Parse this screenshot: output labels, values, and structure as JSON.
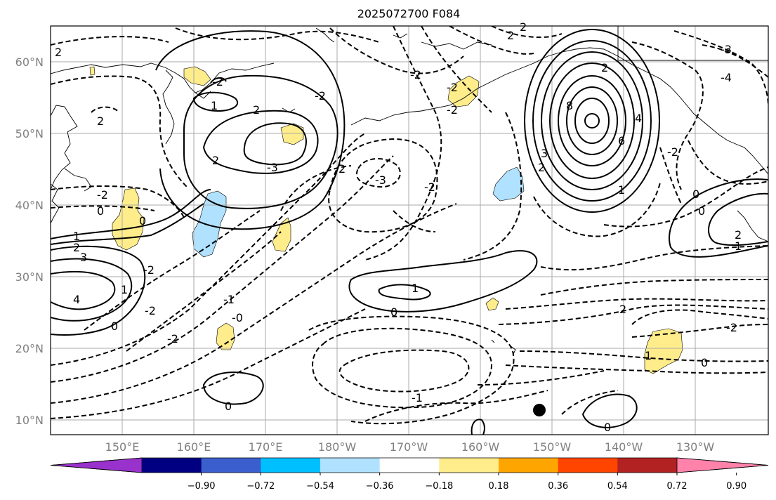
{
  "title": "2025072700 F084",
  "lat_labels": [
    "60°N",
    "50°N",
    "40°N",
    "30°N",
    "20°N",
    "10°N"
  ],
  "lon_labels": [
    "150°E",
    "160°E",
    "170°E",
    "180°W",
    "170°W",
    "160°W",
    "150°W",
    "140°W",
    "130°W"
  ],
  "colorbar": {
    "colors": [
      "#9932cc",
      "#000080",
      "#3a5fcd",
      "#00bfff",
      "#b0e2ff",
      "#ffffff",
      "#ffec8b",
      "#ffa500",
      "#ff4500",
      "#b22222",
      "#ff82ab"
    ],
    "tick_labels": [
      "−0.90",
      "−0.72",
      "−0.54",
      "−0.36",
      "−0.18",
      "0.18",
      "0.36",
      "0.54",
      "0.72",
      "0.90"
    ]
  },
  "contour_labels": {
    "atl_2": "2",
    "aleut_m2": "-2",
    "ak_m2": "-2",
    "nw_2": "2",
    "kam_m2": "-2",
    "kam_2": "2",
    "kam_1": "1",
    "low_m3": "-3",
    "low_2": "2",
    "wc_2": "2",
    "east_m3": "-3",
    "east_m2": "-2",
    "ak_hi_2": "2",
    "ak_hi_4": "4",
    "ak_hi_6": "6",
    "ak_hi_8": "8",
    "ak_hi_3": "3",
    "ak_hi_2b": "2",
    "ak_hi_1": "1",
    "bc_m3": "-3",
    "bc_m4": "-4",
    "bc_m2": "-2",
    "bc_0": "0",
    "w_m2": "-2",
    "w_0": "0",
    "w_1": "1",
    "w_2": "2",
    "w_3": "3",
    "w_4": "4",
    "w_0b": "0",
    "w_1b": "1",
    "w_2b": "-2",
    "w_m2b": "-2",
    "e_2": "2",
    "e_1": "1",
    "c_m1": "-1",
    "c_0": "0",
    "c_m0": "-0",
    "c_m2": "-2",
    "mid_1": "1",
    "mid_0": "0",
    "s_2": "2",
    "s_m2": "-2",
    "s_1": "1",
    "s_0": "0",
    "sw_0": "0",
    "sc_m1": "-1",
    "se_0": "0"
  },
  "shaded_patches": [
    {
      "name": "patch-kamchatka",
      "color": "#ffec8b"
    },
    {
      "name": "patch-kuril",
      "color": "#ffec8b"
    },
    {
      "name": "patch-japan",
      "color": "#ffec8b"
    },
    {
      "name": "patch-okhotsk",
      "color": "#ffec8b"
    },
    {
      "name": "patch-aleutian",
      "color": "#ffec8b"
    },
    {
      "name": "patch-central-n",
      "color": "#ffec8b"
    },
    {
      "name": "patch-hawaii",
      "color": "#ffec8b"
    },
    {
      "name": "patch-southwest",
      "color": "#ffec8b"
    },
    {
      "name": "patch-east",
      "color": "#ffec8b"
    },
    {
      "name": "patch-blue-west",
      "color": "#b0e2ff"
    },
    {
      "name": "patch-blue-central",
      "color": "#b0e2ff"
    },
    {
      "name": "patch-tiny",
      "color": "#ffec8b"
    }
  ]
}
